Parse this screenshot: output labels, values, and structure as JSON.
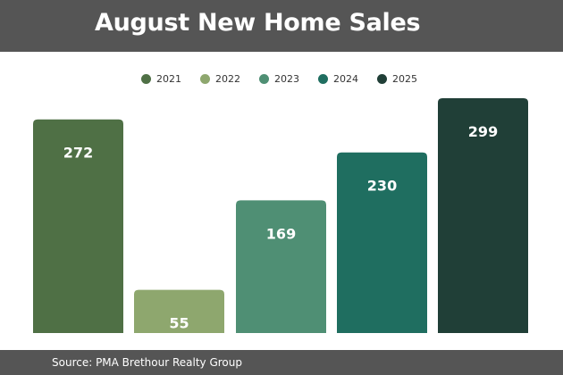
{
  "chart_data": {
    "type": "bar",
    "title": "August New Home Sales",
    "categories": [
      "2021",
      "2022",
      "2023",
      "2024",
      "2025"
    ],
    "values": [
      272,
      55,
      169,
      230,
      299
    ],
    "colors": [
      "#4f7045",
      "#8ea76e",
      "#4f8f74",
      "#1f6e60",
      "#203f37"
    ],
    "legend_position": "top-center",
    "ylim": [
      0,
      299
    ],
    "grid": false,
    "data_labels": true
  },
  "footer": {
    "source": "Source: PMA Brethour Realty Group"
  },
  "theme": {
    "bar_color": "#555555",
    "label_color": "#ffffff"
  }
}
